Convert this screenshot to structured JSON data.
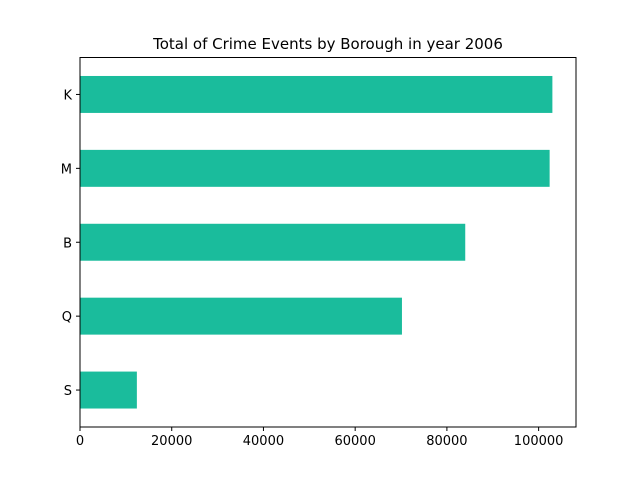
{
  "chart_data": {
    "type": "bar",
    "orientation": "horizontal",
    "title": "Total of Crime Events by Borough in year 2006",
    "xlabel": "",
    "ylabel": "",
    "categories": [
      "K",
      "M",
      "B",
      "Q",
      "S"
    ],
    "values": [
      103000,
      102400,
      84000,
      70200,
      12400
    ],
    "xlim": [
      0,
      108150
    ],
    "xticks": [
      0,
      20000,
      40000,
      60000,
      80000,
      100000
    ],
    "grid": false,
    "legend": "none",
    "bar_color": "#1abc9c"
  }
}
